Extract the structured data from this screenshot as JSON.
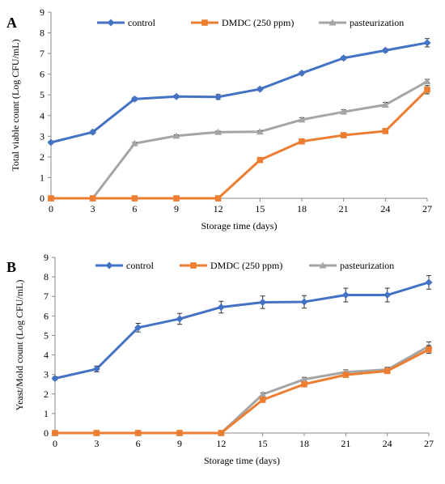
{
  "chart_data": [
    {
      "panel_label": "A",
      "type": "line",
      "x": [
        0,
        3,
        6,
        9,
        12,
        15,
        18,
        21,
        24,
        27
      ],
      "xlabel": "Storage time (days)",
      "ylabel": "Total viable count (Log CFU/mL)",
      "xlim": [
        0,
        27
      ],
      "ylim": [
        0,
        9
      ],
      "yticks": [
        0,
        1,
        2,
        3,
        4,
        5,
        6,
        7,
        8,
        9
      ],
      "grid": false,
      "legend_position": "top",
      "series": [
        {
          "name": "control",
          "marker": "diamond",
          "color": "#4472C4",
          "values": [
            2.7,
            3.2,
            4.8,
            4.92,
            4.9,
            5.28,
            6.05,
            6.78,
            7.15,
            7.52
          ],
          "errors": [
            0.05,
            0.08,
            0.08,
            0.07,
            0.12,
            0.08,
            0.06,
            0.08,
            0.08,
            0.2
          ]
        },
        {
          "name": "DMDC (250 ppm)",
          "marker": "square",
          "color": "#ED7D31",
          "values": [
            0,
            0,
            0,
            0,
            0,
            1.85,
            2.75,
            3.05,
            3.25,
            5.25
          ],
          "errors": [
            0,
            0,
            0,
            0,
            0,
            0.05,
            0.12,
            0.12,
            0.12,
            0.2
          ]
        },
        {
          "name": "pasteurization",
          "marker": "triangle",
          "color": "#A5A5A5",
          "values": [
            0,
            0,
            2.65,
            3.02,
            3.2,
            3.22,
            3.8,
            4.18,
            4.52,
            5.65
          ],
          "errors": [
            0,
            0,
            0.05,
            0.05,
            0.05,
            0.05,
            0.1,
            0.1,
            0.12,
            0.1
          ]
        }
      ]
    },
    {
      "panel_label": "B",
      "type": "line",
      "x": [
        0,
        3,
        6,
        9,
        12,
        15,
        18,
        21,
        24,
        27
      ],
      "xlabel": "Storage time (days)",
      "ylabel": "Yeast/Mold count (Log CFU/mL)",
      "xlim": [
        0,
        27
      ],
      "ylim": [
        0,
        9
      ],
      "yticks": [
        0,
        1,
        2,
        3,
        4,
        5,
        6,
        7,
        8,
        9
      ],
      "grid": false,
      "legend_position": "top",
      "series": [
        {
          "name": "control",
          "marker": "diamond",
          "color": "#4472C4",
          "values": [
            2.8,
            3.28,
            5.4,
            5.85,
            6.45,
            6.7,
            6.72,
            7.07,
            7.07,
            7.72
          ],
          "errors": [
            0.08,
            0.15,
            0.22,
            0.28,
            0.3,
            0.32,
            0.32,
            0.35,
            0.35,
            0.35
          ]
        },
        {
          "name": "DMDC (250 ppm)",
          "marker": "square",
          "color": "#ED7D31",
          "values": [
            0,
            0,
            0,
            0,
            0,
            1.7,
            2.5,
            2.98,
            3.18,
            4.28
          ],
          "errors": [
            0,
            0,
            0,
            0,
            0,
            0.08,
            0.1,
            0.1,
            0.1,
            0.2
          ]
        },
        {
          "name": "pasteurization",
          "marker": "triangle",
          "color": "#A5A5A5",
          "values": [
            0,
            0,
            0,
            0,
            0,
            1.98,
            2.75,
            3.12,
            3.25,
            4.45
          ],
          "errors": [
            0,
            0,
            0,
            0,
            0,
            0.08,
            0.1,
            0.12,
            0.12,
            0.22
          ]
        }
      ]
    }
  ]
}
